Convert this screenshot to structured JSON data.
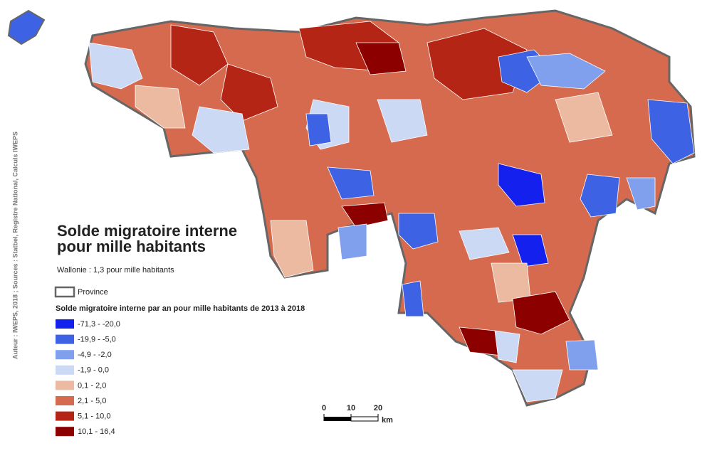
{
  "title_lines": [
    "Solde migratoire interne",
    "pour mille habitants"
  ],
  "subtitle": "Wallonie : 1,3 pour mille habitants",
  "province_legend": "Province",
  "legend": {
    "title": "Solde migratoire interne par an pour mille habitants de 2013 à 2018",
    "classes": [
      {
        "label": "-71,3 - -20,0",
        "color": "#1420ee"
      },
      {
        "label": "-19,9 - -5,0",
        "color": "#3d62e4"
      },
      {
        "label": "-4,9 - -2,0",
        "color": "#80a0ee"
      },
      {
        "label": "-1,9 - 0,0",
        "color": "#cbd9f5"
      },
      {
        "label": "0,1 - 2,0",
        "color": "#ebbaa0"
      },
      {
        "label": "2,1 - 5,0",
        "color": "#d66a4f"
      },
      {
        "label": "5,1 - 10,0",
        "color": "#b52516"
      },
      {
        "label": "10,1 - 16,4",
        "color": "#8c0000"
      }
    ]
  },
  "scale_bar": {
    "ticks": [
      0,
      10,
      20
    ],
    "unit": "km"
  },
  "credits": "Auteur : IWEPS, 2018 ; Sources : Statbel, Registre National, Calculs IWEPS"
}
